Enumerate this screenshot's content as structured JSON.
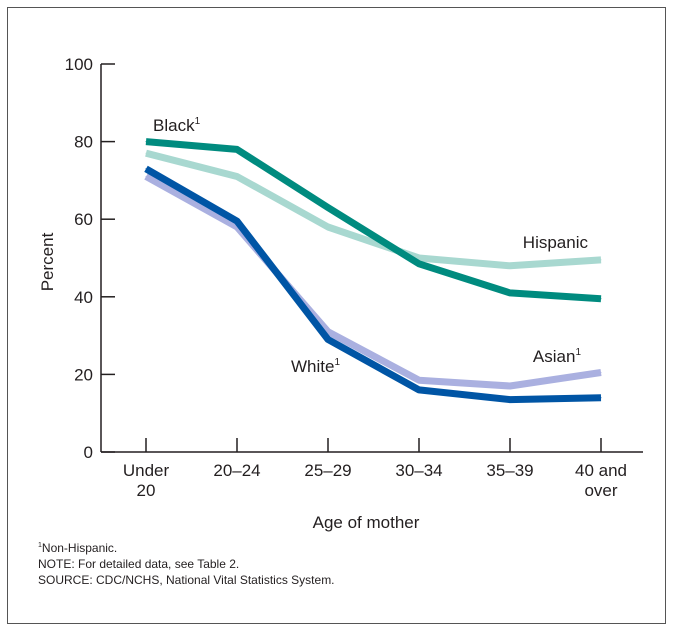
{
  "chart_data": {
    "type": "line",
    "title": "",
    "xlabel": "Age of mother",
    "ylabel": "Percent",
    "ylim": [
      0,
      100
    ],
    "yticks": [
      0,
      20,
      40,
      60,
      80,
      100
    ],
    "categories": [
      {
        "line1": "Under",
        "line2": "20"
      },
      {
        "line1": "20–24",
        "line2": ""
      },
      {
        "line1": "25–29",
        "line2": ""
      },
      {
        "line1": "30–34",
        "line2": ""
      },
      {
        "line1": "35–39",
        "line2": ""
      },
      {
        "line1": "40 and",
        "line2": "over"
      }
    ],
    "grid": false,
    "series": [
      {
        "key": "hispanic",
        "name": "Hispanic",
        "footnote": "",
        "color": "#a8d8d0",
        "values": [
          77,
          71,
          58,
          50,
          48,
          49.5
        ]
      },
      {
        "key": "asian",
        "name": "Asian",
        "footnote": "1",
        "color": "#aab0e0",
        "values": [
          71,
          58,
          31,
          18.5,
          17,
          20.5
        ]
      },
      {
        "key": "black",
        "name": "Black",
        "footnote": "1",
        "color": "#008b7f",
        "values": [
          80,
          78,
          63,
          48.5,
          41,
          39.5
        ]
      },
      {
        "key": "white",
        "name": "White",
        "footnote": "1",
        "color": "#0055a5",
        "values": [
          73,
          59.5,
          29,
          16,
          13.5,
          14
        ]
      }
    ]
  },
  "notes": {
    "footnote_marker": "1",
    "footnote_text": "Non-Hispanic.",
    "note": "NOTE: For detailed data, see Table 2.",
    "source": "SOURCE: CDC/NCHS, National Vital Statistics System."
  }
}
